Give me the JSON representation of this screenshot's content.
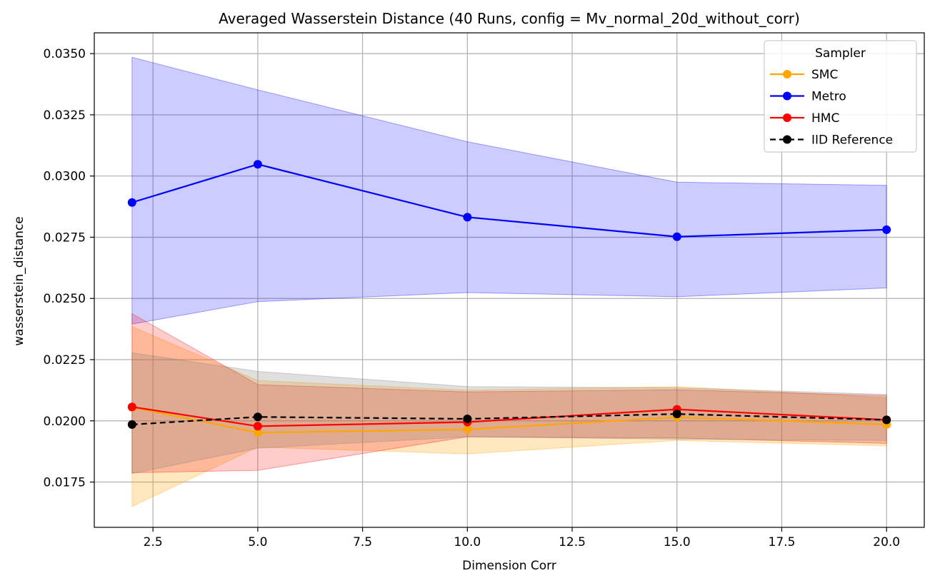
{
  "chart_data": {
    "type": "line",
    "title": "Averaged Wasserstein Distance (40 Runs, config = Mv_normal_20d_without_corr)",
    "xlabel": "Dimension Corr",
    "ylabel": "wasserstein_distance",
    "xlim": [
      1.1,
      20.9
    ],
    "ylim": [
      0.01565,
      0.03585
    ],
    "xticks": [
      2.5,
      5.0,
      7.5,
      10.0,
      12.5,
      15.0,
      17.5,
      20.0
    ],
    "xtick_labels": [
      "2.5",
      "5.0",
      "7.5",
      "10.0",
      "12.5",
      "15.0",
      "17.5",
      "20.0"
    ],
    "yticks": [
      0.0175,
      0.02,
      0.0225,
      0.025,
      0.0275,
      0.03,
      0.0325,
      0.035
    ],
    "ytick_labels": [
      "0.0175",
      "0.0200",
      "0.0225",
      "0.0250",
      "0.0275",
      "0.0300",
      "0.0325",
      "0.0350"
    ],
    "grid": true,
    "legend": {
      "title": "Sampler",
      "placement": "top-right"
    },
    "x": [
      2,
      5,
      10,
      15,
      20
    ],
    "series": [
      {
        "name": "SMC",
        "color": "#ffa500",
        "band_color": "#ffa500",
        "band_opacity": 0.25,
        "dashed": false,
        "values": [
          0.02055,
          0.01952,
          0.01965,
          0.02015,
          0.01985
        ],
        "lower": [
          0.0165,
          0.01893,
          0.01865,
          0.0192,
          0.01898
        ],
        "upper": [
          0.02385,
          0.02165,
          0.02125,
          0.0214,
          0.02095
        ]
      },
      {
        "name": "Metro",
        "color": "#0000ff",
        "band_color": "#0000ff",
        "band_opacity": 0.2,
        "dashed": false,
        "values": [
          0.02892,
          0.03048,
          0.02832,
          0.02752,
          0.02781
        ],
        "lower": [
          0.02395,
          0.02487,
          0.02524,
          0.02507,
          0.02543
        ],
        "upper": [
          0.03485,
          0.03352,
          0.0314,
          0.02975,
          0.02962
        ]
      },
      {
        "name": "HMC",
        "color": "#ff0000",
        "band_color": "#ff0000",
        "band_opacity": 0.2,
        "dashed": false,
        "values": [
          0.02057,
          0.01978,
          0.01995,
          0.02047,
          0.02004
        ],
        "lower": [
          0.01788,
          0.01798,
          0.01935,
          0.0193,
          0.01908
        ],
        "upper": [
          0.02438,
          0.02148,
          0.02118,
          0.02127,
          0.02103
        ]
      },
      {
        "name": "IID Reference",
        "color": "#000000",
        "band_color": "#808080",
        "band_opacity": 0.25,
        "dashed": true,
        "values": [
          0.01985,
          0.02016,
          0.02008,
          0.02028,
          0.02004
        ],
        "lower": [
          0.01785,
          0.01888,
          0.01935,
          0.01925,
          0.0192
        ],
        "upper": [
          0.02278,
          0.02202,
          0.0214,
          0.02135,
          0.02108
        ]
      }
    ]
  }
}
